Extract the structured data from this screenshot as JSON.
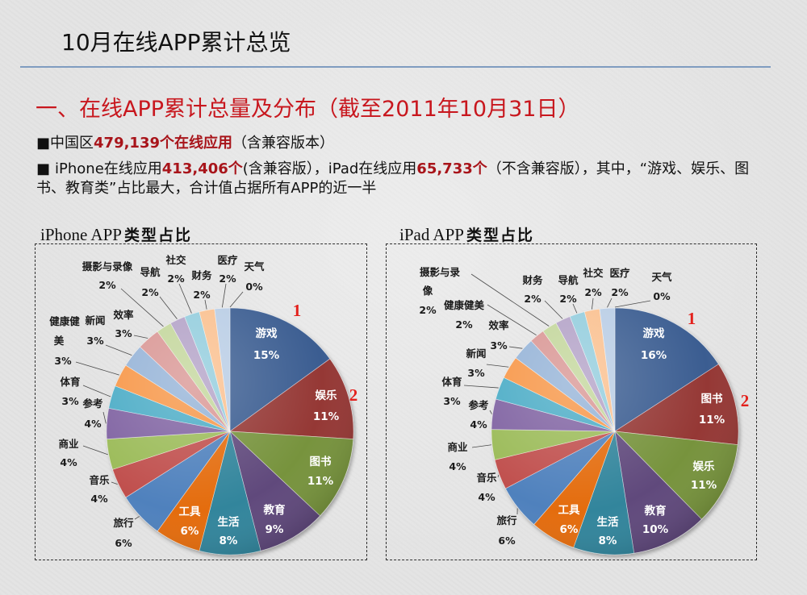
{
  "slide": {
    "title": "10月在线APP累计总览",
    "heading": "一、在线APP累计总量及分布（截至2011年10月31日）",
    "bullet1": {
      "marker": "■",
      "text1": "中国区",
      "highlight1": "479,139个在线应用",
      "text2": "（含兼容版本）"
    },
    "bullet2": {
      "marker": "■",
      "text1": "iPhone在线应用",
      "highlight1": "413,406个",
      "text2": "(含兼容版），iPad在线应用",
      "highlight2": "65,733个",
      "text3": "（不含兼容版），其中，“游戏、娱乐、图书、教育类”占比最大，合计值占据所有APP的近一半"
    }
  },
  "colors": {
    "heading_red": "#c8171e",
    "highlight_red": "#a8141a",
    "rule_blue": "#7f9cc0",
    "mark_red": "#e3201b",
    "slice_colors": [
      "#3b5d91",
      "#953735",
      "#77933c",
      "#604a7b",
      "#31859c",
      "#e46c0a",
      "#4f81bd",
      "#c0504d",
      "#9bbb59",
      "#8064a2",
      "#4bacc6",
      "#f79646",
      "#95b3d7",
      "#d99694",
      "#c3d69b",
      "#b3a2c7",
      "#93cddd",
      "#fac08f",
      "#b9cde5",
      "#d7e4bd"
    ]
  },
  "chart_data": [
    {
      "type": "pie",
      "title_prefix": "iPhone APP",
      "title_suffix": "类型占比",
      "categories": [
        "游戏",
        "娱乐",
        "图书",
        "教育",
        "生活",
        "工具",
        "旅行",
        "音乐",
        "商业",
        "参考",
        "体育",
        "健康健美",
        "新闻",
        "效率",
        "摄影与录像",
        "导航",
        "社交",
        "财务",
        "医疗",
        "天气"
      ],
      "values": [
        15,
        11,
        11,
        9,
        8,
        6,
        6,
        4,
        4,
        4,
        3,
        3,
        3,
        3,
        2,
        2,
        2,
        2,
        2,
        0
      ],
      "value_suffix": "%",
      "rank_marks": [
        "1",
        "2"
      ]
    },
    {
      "type": "pie",
      "title_prefix": "iPad APP",
      "title_suffix": "类型占比",
      "categories": [
        "游戏",
        "图书",
        "娱乐",
        "教育",
        "生活",
        "工具",
        "旅行",
        "音乐",
        "商业",
        "参考",
        "体育",
        "新闻",
        "效率",
        "健康健美",
        "摄影与录像",
        "财务",
        "导航",
        "社交",
        "医疗",
        "天气"
      ],
      "values": [
        16,
        11,
        11,
        10,
        8,
        6,
        6,
        4,
        4,
        4,
        3,
        3,
        3,
        2,
        2,
        2,
        2,
        2,
        2,
        0
      ],
      "value_suffix": "%",
      "rank_marks": [
        "1",
        "2"
      ]
    }
  ]
}
